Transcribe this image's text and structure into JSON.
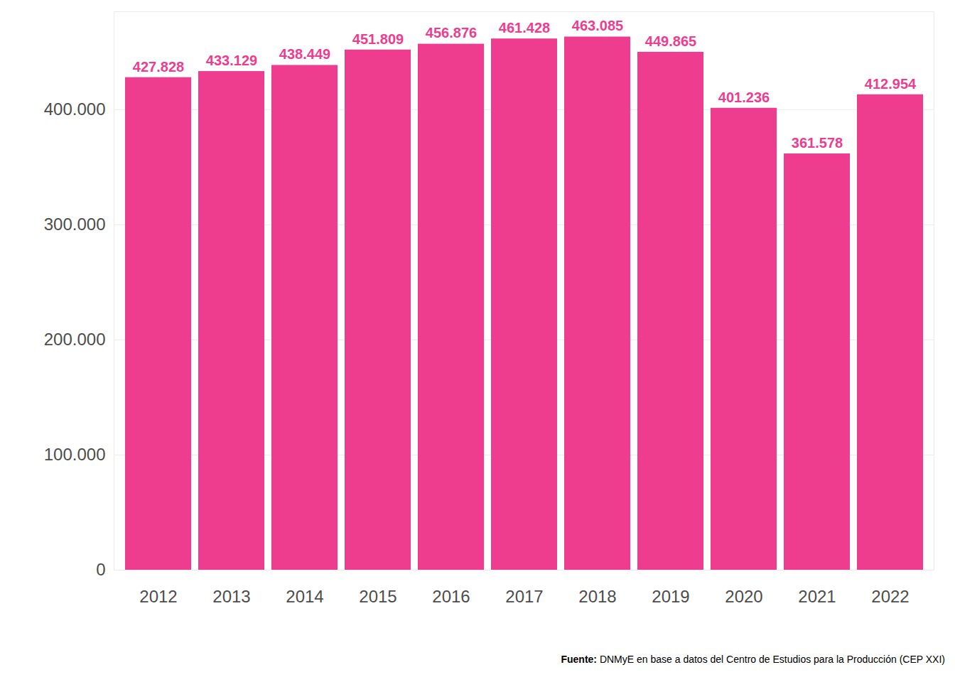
{
  "chart_data": {
    "type": "bar",
    "categories": [
      "2012",
      "2013",
      "2014",
      "2015",
      "2016",
      "2017",
      "2018",
      "2019",
      "2020",
      "2021",
      "2022"
    ],
    "values": [
      427828,
      433129,
      438449,
      451809,
      456876,
      461428,
      463085,
      449865,
      401236,
      361578,
      412954
    ],
    "value_labels": [
      "427.828",
      "433.129",
      "438.449",
      "451.809",
      "456.876",
      "461.428",
      "463.085",
      "449.865",
      "401.236",
      "361.578",
      "412.954"
    ],
    "color": "#ee3d8f",
    "ylim": [
      0,
      485000
    ],
    "yticks": [
      0,
      {
        "value": 100000,
        "label": "100.000"
      },
      {
        "value": 200000,
        "label": "200.000"
      },
      {
        "value": 300000,
        "label": "300.000"
      },
      {
        "value": 400000,
        "label": "400.000"
      }
    ],
    "grid": true,
    "data_labels": true,
    "caption_label": "Fuente:",
    "caption": "DNMyE en base a datos del Centro de Estudios para la Producción (CEP XXI)"
  }
}
